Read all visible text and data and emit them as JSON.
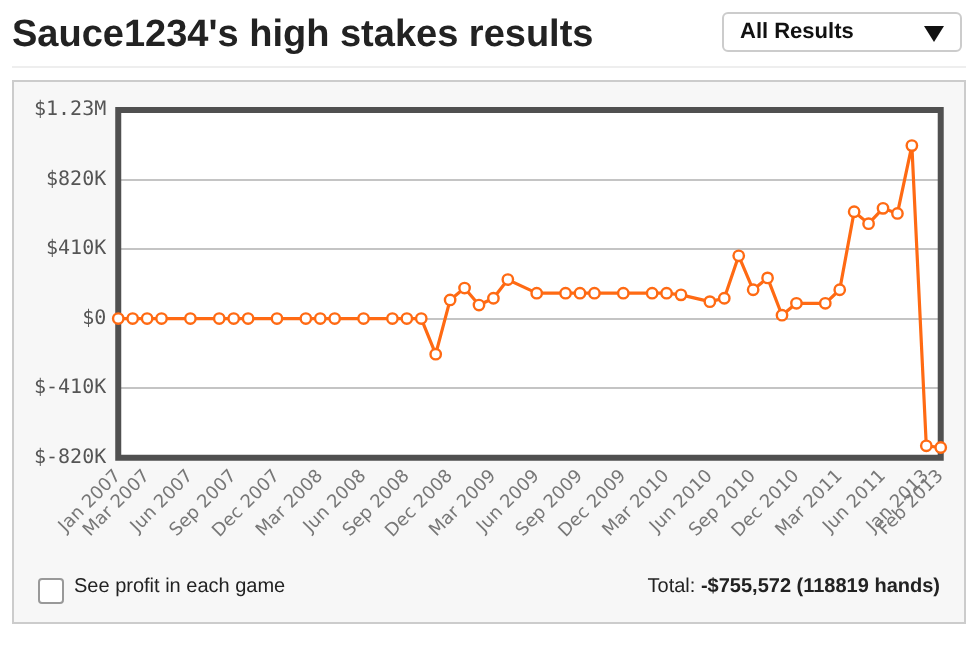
{
  "chart_data": {
    "type": "line",
    "title": "Sauce1234's high stakes results",
    "annotations": [
      "All Results",
      "See profit in each game",
      "Total: -$755,572 (118819 hands)"
    ],
    "categories": [
      "Jan 2007",
      null,
      "Mar 2007",
      null,
      null,
      "Jun 2007",
      null,
      null,
      "Sep 2007",
      null,
      null,
      "Dec 2007",
      null,
      null,
      "Mar 2008",
      null,
      null,
      "Jun 2008",
      null,
      null,
      "Sep 2008",
      null,
      null,
      "Dec 2008",
      null,
      null,
      "Mar 2009",
      null,
      null,
      "Jun 2009",
      null,
      null,
      "Sep 2009",
      null,
      null,
      "Dec 2009",
      null,
      null,
      "Mar 2010",
      null,
      null,
      "Jun 2010",
      null,
      null,
      "Sep 2010",
      null,
      null,
      "Dec 2010",
      null,
      null,
      "Mar 2011",
      null,
      null,
      "Jun 2011",
      null,
      null,
      "Jan 2013",
      "Feb 2013"
    ],
    "series": [
      {
        "color": "#ff6a13",
        "values": [
          0,
          0,
          0,
          0,
          null,
          0,
          null,
          0,
          0,
          0,
          null,
          0,
          null,
          0,
          0,
          0,
          null,
          0,
          null,
          0,
          0,
          0,
          -210000,
          110000,
          180000,
          80000,
          120000,
          230000,
          null,
          150000,
          null,
          150000,
          150000,
          150000,
          null,
          150000,
          null,
          150000,
          150000,
          140000,
          null,
          100000,
          120000,
          370000,
          170000,
          240000,
          20000,
          90000,
          null,
          90000,
          170000,
          630000,
          560000,
          650000,
          620000,
          1020000,
          -750000,
          -760000
        ]
      }
    ],
    "ylim": [
      -820000,
      1230000
    ],
    "yticks": [
      {
        "value": -820000,
        "label": "$-820K"
      },
      {
        "value": -410000,
        "label": "$-410K"
      },
      {
        "value": 0,
        "label": "$0"
      },
      {
        "value": 410000,
        "label": "$410K"
      },
      {
        "value": 820000,
        "label": "$820K"
      },
      {
        "value": 1230000,
        "label": "$1.23M"
      }
    ],
    "grid": "y",
    "legend": false,
    "marker": "circle",
    "line_style": "solid"
  }
}
